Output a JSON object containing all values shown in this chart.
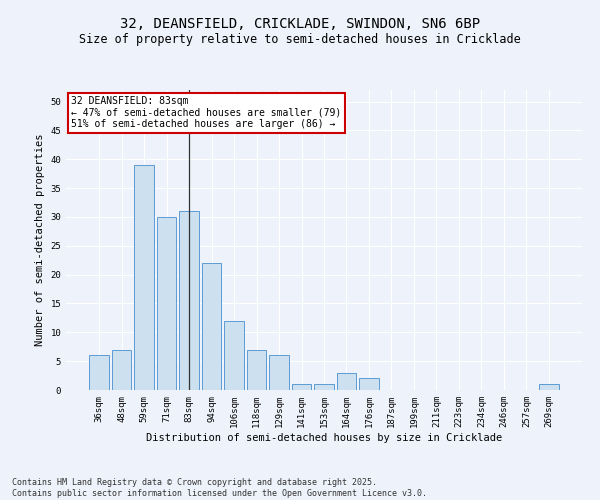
{
  "title_line1": "32, DEANSFIELD, CRICKLADE, SWINDON, SN6 6BP",
  "title_line2": "Size of property relative to semi-detached houses in Cricklade",
  "xlabel": "Distribution of semi-detached houses by size in Cricklade",
  "ylabel": "Number of semi-detached properties",
  "categories": [
    "36sqm",
    "48sqm",
    "59sqm",
    "71sqm",
    "83sqm",
    "94sqm",
    "106sqm",
    "118sqm",
    "129sqm",
    "141sqm",
    "153sqm",
    "164sqm",
    "176sqm",
    "187sqm",
    "199sqm",
    "211sqm",
    "223sqm",
    "234sqm",
    "246sqm",
    "257sqm",
    "269sqm"
  ],
  "values": [
    6,
    7,
    39,
    30,
    31,
    22,
    12,
    7,
    6,
    1,
    1,
    3,
    2,
    0,
    0,
    0,
    0,
    0,
    0,
    0,
    1
  ],
  "bar_color": "#cce0f0",
  "bar_edge_color": "#5b9bd5",
  "highlight_index": 4,
  "highlight_line_color": "#333333",
  "annotation_text": "32 DEANSFIELD: 83sqm\n← 47% of semi-detached houses are smaller (79)\n51% of semi-detached houses are larger (86) →",
  "annotation_box_color": "#ffffff",
  "annotation_box_edge": "#cc0000",
  "ylim": [
    0,
    52
  ],
  "yticks": [
    0,
    5,
    10,
    15,
    20,
    25,
    30,
    35,
    40,
    45,
    50
  ],
  "background_color": "#eef2fa",
  "grid_color": "#ffffff",
  "footer_line1": "Contains HM Land Registry data © Crown copyright and database right 2025.",
  "footer_line2": "Contains public sector information licensed under the Open Government Licence v3.0.",
  "title_fontsize": 10,
  "subtitle_fontsize": 8.5,
  "axis_label_fontsize": 7.5,
  "tick_fontsize": 6.5,
  "annotation_fontsize": 7,
  "footer_fontsize": 6
}
